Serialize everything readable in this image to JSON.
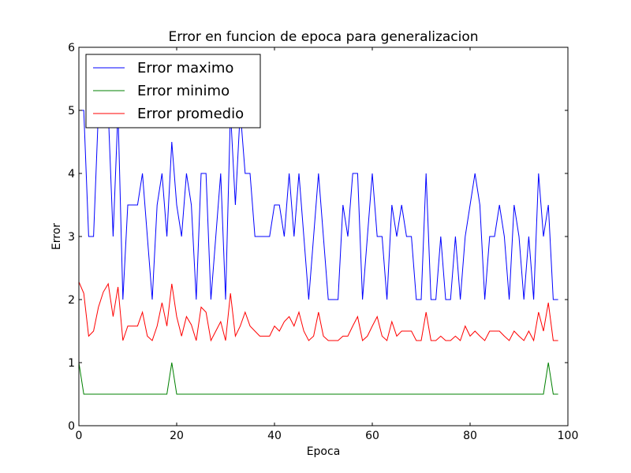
{
  "chart_data": {
    "type": "line",
    "title": "Error en funcion de epoca para generalizacion",
    "xlabel": "Epoca",
    "ylabel": "Error",
    "xlim": [
      0,
      100
    ],
    "ylim": [
      0,
      6
    ],
    "xticks": [
      0,
      20,
      40,
      60,
      80,
      100
    ],
    "yticks": [
      0,
      1,
      2,
      3,
      4,
      5,
      6
    ],
    "grid": false,
    "legend_position": "top-left",
    "x": [
      0,
      1,
      2,
      3,
      4,
      5,
      6,
      7,
      8,
      9,
      10,
      11,
      12,
      13,
      14,
      15,
      16,
      17,
      18,
      19,
      20,
      21,
      22,
      23,
      24,
      25,
      26,
      27,
      28,
      29,
      30,
      31,
      32,
      33,
      34,
      35,
      36,
      37,
      38,
      39,
      40,
      41,
      42,
      43,
      44,
      45,
      46,
      47,
      48,
      49,
      50,
      51,
      52,
      53,
      54,
      55,
      56,
      57,
      58,
      59,
      60,
      61,
      62,
      63,
      64,
      65,
      66,
      67,
      68,
      69,
      70,
      71,
      72,
      73,
      74,
      75,
      76,
      77,
      78,
      79,
      80,
      81,
      82,
      83,
      84,
      85,
      86,
      87,
      88,
      89,
      90,
      91,
      92,
      93,
      94,
      95,
      96,
      97,
      98
    ],
    "series": [
      {
        "name": "Error maximo",
        "color": "#0000ff",
        "values": [
          5,
          5,
          3,
          3,
          5,
          5,
          5,
          3,
          5,
          2,
          3.5,
          3.5,
          3.5,
          4,
          3,
          2,
          3.5,
          4,
          3,
          4.5,
          3.5,
          3,
          4,
          3.5,
          2,
          4,
          4,
          2,
          3,
          4,
          2,
          5,
          3.5,
          5,
          4,
          4,
          3,
          3,
          3,
          3,
          3.5,
          3.5,
          3,
          4,
          3,
          4,
          3,
          2,
          3,
          4,
          3,
          2,
          2,
          2,
          3.5,
          3,
          4,
          4,
          2,
          3,
          4,
          3,
          3,
          2,
          3.5,
          3,
          3.5,
          3,
          3,
          2,
          2,
          4,
          2,
          2,
          3,
          2,
          2,
          3,
          2,
          3,
          3.5,
          4,
          3.5,
          2,
          3,
          3,
          3.5,
          3,
          2,
          3.5,
          3,
          2,
          3,
          2,
          4,
          3,
          3.5,
          2,
          2
        ]
      },
      {
        "name": "Error minimo",
        "color": "#008000",
        "values": [
          1,
          0.5,
          0.5,
          0.5,
          0.5,
          0.5,
          0.5,
          0.5,
          0.5,
          0.5,
          0.5,
          0.5,
          0.5,
          0.5,
          0.5,
          0.5,
          0.5,
          0.5,
          0.5,
          1,
          0.5,
          0.5,
          0.5,
          0.5,
          0.5,
          0.5,
          0.5,
          0.5,
          0.5,
          0.5,
          0.5,
          0.5,
          0.5,
          0.5,
          0.5,
          0.5,
          0.5,
          0.5,
          0.5,
          0.5,
          0.5,
          0.5,
          0.5,
          0.5,
          0.5,
          0.5,
          0.5,
          0.5,
          0.5,
          0.5,
          0.5,
          0.5,
          0.5,
          0.5,
          0.5,
          0.5,
          0.5,
          0.5,
          0.5,
          0.5,
          0.5,
          0.5,
          0.5,
          0.5,
          0.5,
          0.5,
          0.5,
          0.5,
          0.5,
          0.5,
          0.5,
          0.5,
          0.5,
          0.5,
          0.5,
          0.5,
          0.5,
          0.5,
          0.5,
          0.5,
          0.5,
          0.5,
          0.5,
          0.5,
          0.5,
          0.5,
          0.5,
          0.5,
          0.5,
          0.5,
          0.5,
          0.5,
          0.5,
          0.5,
          0.5,
          0.5,
          1,
          0.5,
          0.5
        ]
      },
      {
        "name": "Error promedio",
        "color": "#ff0000",
        "values": [
          2.28,
          2.1,
          1.42,
          1.5,
          1.88,
          2.12,
          2.25,
          1.73,
          2.2,
          1.35,
          1.58,
          1.58,
          1.58,
          1.8,
          1.42,
          1.35,
          1.58,
          1.95,
          1.58,
          2.25,
          1.73,
          1.42,
          1.73,
          1.6,
          1.35,
          1.88,
          1.8,
          1.35,
          1.5,
          1.65,
          1.35,
          2.1,
          1.42,
          1.58,
          1.8,
          1.58,
          1.5,
          1.42,
          1.42,
          1.42,
          1.58,
          1.5,
          1.65,
          1.73,
          1.58,
          1.8,
          1.5,
          1.35,
          1.42,
          1.8,
          1.42,
          1.35,
          1.35,
          1.35,
          1.42,
          1.42,
          1.58,
          1.73,
          1.35,
          1.42,
          1.58,
          1.73,
          1.42,
          1.35,
          1.65,
          1.42,
          1.5,
          1.5,
          1.5,
          1.35,
          1.35,
          1.8,
          1.35,
          1.35,
          1.42,
          1.35,
          1.35,
          1.42,
          1.35,
          1.58,
          1.42,
          1.5,
          1.42,
          1.35,
          1.5,
          1.5,
          1.5,
          1.42,
          1.35,
          1.5,
          1.42,
          1.35,
          1.5,
          1.35,
          1.8,
          1.5,
          1.95,
          1.35,
          1.35
        ]
      }
    ]
  }
}
